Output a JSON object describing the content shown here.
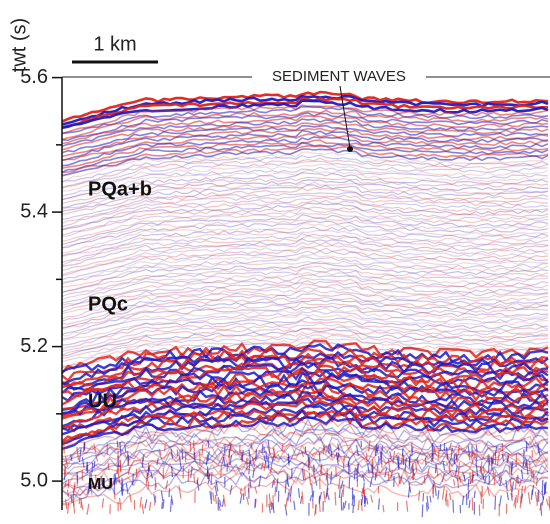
{
  "axis": {
    "label": "twt (s)",
    "ylim": [
      4.96,
      5.6
    ],
    "ticks": [
      {
        "value": 5.0,
        "label": "5.0"
      },
      {
        "value": 5.2,
        "label": "5.2"
      },
      {
        "value": 5.4,
        "label": "5.4"
      },
      {
        "value": 5.6,
        "label": "5.6"
      }
    ],
    "minor_ticks": [
      5.1,
      5.3,
      5.5
    ]
  },
  "scale_bar": {
    "label": "1 km"
  },
  "annotation": {
    "label": "SEDIMENT WAVES"
  },
  "units": [
    {
      "label": "PQa+b"
    },
    {
      "label": "PQc"
    },
    {
      "label": "UU"
    },
    {
      "label": "MU"
    }
  ]
}
